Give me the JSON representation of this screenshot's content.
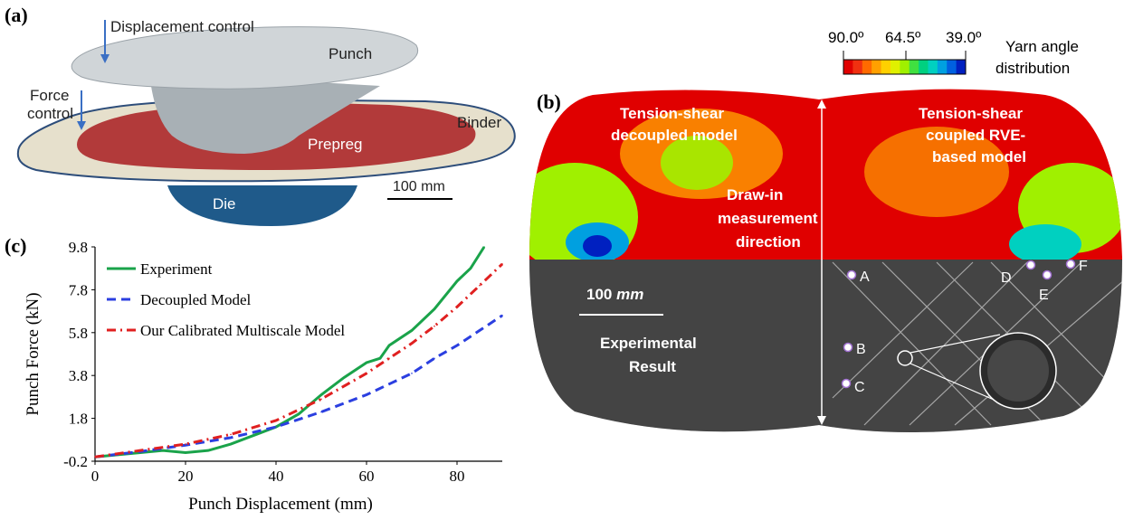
{
  "panel_a": {
    "label": "(a)",
    "displacement_control": "Displacement control",
    "punch": "Punch",
    "force_control_line1": "Force",
    "force_control_line2": "control",
    "binder": "Binder",
    "prepreg": "Prepreg",
    "die": "Die",
    "scale": "100 mm",
    "colors": {
      "punch": "#c8cdd0",
      "binder": "#e6e0cc",
      "prepreg": "#b23a3a",
      "die": "#1f5a8a",
      "arrow": "#3a6fc4"
    }
  },
  "panel_b": {
    "label": "(b)",
    "colorbar": {
      "ticks": [
        "90.0º",
        "64.5º",
        "39.0º"
      ],
      "title_line1": "Yarn angle",
      "title_line2": "distribution",
      "colors": [
        "#e00000",
        "#f03010",
        "#ff6a00",
        "#ffa000",
        "#ffd000",
        "#e0f000",
        "#a0f000",
        "#40e040",
        "#00d080",
        "#00d0c0",
        "#00a0e0",
        "#0060e0",
        "#0020c0"
      ]
    },
    "left_title_line1": "Tension-shear",
    "left_title_line2": "decoupled model",
    "right_title_line1": "Tension-shear",
    "right_title_line2": "coupled RVE-",
    "right_title_line3": "based model",
    "center_line1": "Draw-in",
    "center_line2": "measurement",
    "center_line3": "direction",
    "scale": "100 mm",
    "scale_num": "100",
    "scale_unit": "mm",
    "exp_line1": "Experimental",
    "exp_line2": "Result",
    "points": [
      "A",
      "B",
      "C",
      "D",
      "E",
      "F"
    ]
  },
  "panel_c": {
    "label": "(c)"
  },
  "chart_data": {
    "type": "line",
    "xlabel": "Punch Displacement (mm)",
    "ylabel": "Punch Force (kN)",
    "xlim": [
      0,
      90
    ],
    "ylim": [
      -0.2,
      9.8
    ],
    "xticks": [
      "0",
      "20",
      "40",
      "60",
      "80"
    ],
    "yticks": [
      "-0.2",
      "1.8",
      "3.8",
      "5.8",
      "7.8",
      "9.8"
    ],
    "legend_position": "top-left",
    "series": [
      {
        "name": "Experiment",
        "color": "#1aa34a",
        "style": "solid",
        "x": [
          0,
          5,
          10,
          15,
          20,
          25,
          30,
          35,
          40,
          45,
          50,
          55,
          60,
          63,
          65,
          70,
          75,
          80,
          83,
          86
        ],
        "y": [
          0.0,
          0.1,
          0.2,
          0.3,
          0.2,
          0.3,
          0.6,
          1.0,
          1.4,
          2.0,
          2.9,
          3.7,
          4.4,
          4.6,
          5.2,
          5.9,
          6.9,
          8.2,
          8.8,
          9.8
        ]
      },
      {
        "name": "Decoupled Model",
        "color": "#2b3fe0",
        "style": "dashed",
        "x": [
          0,
          10,
          20,
          30,
          40,
          50,
          60,
          65,
          70,
          75,
          80,
          85,
          90
        ],
        "y": [
          0.0,
          0.25,
          0.55,
          0.9,
          1.4,
          2.1,
          2.9,
          3.4,
          3.9,
          4.6,
          5.2,
          5.9,
          6.6
        ]
      },
      {
        "name": "Our Calibrated Multiscale Model",
        "color": "#e02020",
        "style": "dashdot",
        "x": [
          0,
          10,
          20,
          30,
          40,
          50,
          60,
          65,
          70,
          75,
          80,
          85,
          90
        ],
        "y": [
          0.0,
          0.3,
          0.6,
          1.05,
          1.7,
          2.7,
          3.9,
          4.6,
          5.3,
          6.1,
          7.0,
          8.0,
          9.0
        ]
      }
    ]
  }
}
